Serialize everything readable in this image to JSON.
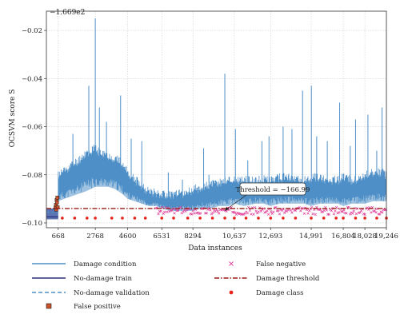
{
  "chart_data": {
    "type": "line",
    "offset_label": "−1.669e2",
    "ylabel": "OCSVM score S",
    "xlabel": "Data instances",
    "x_ticks": [
      "668",
      "2768",
      "4600",
      "6531",
      "8294",
      "10,637",
      "12,693",
      "14,991",
      "16,804",
      "18,028",
      "19,246"
    ],
    "x_tick_values": [
      668,
      2768,
      4600,
      6531,
      8294,
      10637,
      12693,
      14991,
      16804,
      18028,
      19246
    ],
    "y_ticks": [
      "−0.02",
      "−0.04",
      "−0.06",
      "−0.08",
      "−0.10"
    ],
    "y_tick_values": [
      -0.02,
      -0.04,
      -0.06,
      -0.08,
      -0.1
    ],
    "xlim": [
      0,
      19246
    ],
    "ylim": [
      -0.102,
      -0.012
    ],
    "grid": true,
    "threshold": {
      "value": -0.094,
      "annotation": "Threshold = −166.99"
    },
    "series": [
      {
        "name": "Damage condition",
        "color": "#4e8fc7",
        "style": "solid",
        "envelope": {
          "x": [
            668,
            1000,
            1400,
            1800,
            2200,
            2500,
            2768,
            3100,
            3500,
            3900,
            4300,
            4600,
            5000,
            5400,
            5800,
            6200,
            6531,
            7000,
            7500,
            8000,
            8294,
            8800,
            9300,
            9800,
            10300,
            10637,
            11200,
            11800,
            12300,
            12693,
            13200,
            13700,
            14200,
            14600,
            14991,
            15500,
            16000,
            16500,
            16804,
            17300,
            17700,
            18028,
            18500,
            19000,
            19246
          ],
          "low": [
            -0.091,
            -0.09,
            -0.089,
            -0.088,
            -0.087,
            -0.086,
            -0.085,
            -0.085,
            -0.085,
            -0.086,
            -0.088,
            -0.09,
            -0.091,
            -0.092,
            -0.093,
            -0.093,
            -0.094,
            -0.095,
            -0.095,
            -0.095,
            -0.095,
            -0.094,
            -0.094,
            -0.093,
            -0.093,
            -0.092,
            -0.093,
            -0.092,
            -0.092,
            -0.093,
            -0.092,
            -0.092,
            -0.092,
            -0.092,
            -0.093,
            -0.092,
            -0.092,
            -0.092,
            -0.093,
            -0.092,
            -0.092,
            -0.092,
            -0.091,
            -0.091,
            -0.091
          ],
          "high": [
            -0.081,
            -0.079,
            -0.077,
            -0.075,
            -0.072,
            -0.071,
            -0.07,
            -0.072,
            -0.073,
            -0.074,
            -0.076,
            -0.08,
            -0.083,
            -0.085,
            -0.088,
            -0.088,
            -0.089,
            -0.089,
            -0.089,
            -0.088,
            -0.087,
            -0.086,
            -0.085,
            -0.084,
            -0.083,
            -0.083,
            -0.083,
            -0.083,
            -0.083,
            -0.083,
            -0.082,
            -0.082,
            -0.083,
            -0.083,
            -0.082,
            -0.082,
            -0.083,
            -0.083,
            -0.082,
            -0.083,
            -0.082,
            -0.081,
            -0.08,
            -0.08,
            -0.081
          ]
        },
        "spikes": [
          {
            "x": 2400,
            "y": -0.043
          },
          {
            "x": 2768,
            "y": -0.015
          },
          {
            "x": 3000,
            "y": -0.052
          },
          {
            "x": 3400,
            "y": -0.058
          },
          {
            "x": 1500,
            "y": -0.063
          },
          {
            "x": 4200,
            "y": -0.047
          },
          {
            "x": 4800,
            "y": -0.065
          },
          {
            "x": 5400,
            "y": -0.066
          },
          {
            "x": 6900,
            "y": -0.079
          },
          {
            "x": 7700,
            "y": -0.082
          },
          {
            "x": 8900,
            "y": -0.069
          },
          {
            "x": 9200,
            "y": -0.08
          },
          {
            "x": 10100,
            "y": -0.038
          },
          {
            "x": 10700,
            "y": -0.061
          },
          {
            "x": 11400,
            "y": -0.074
          },
          {
            "x": 12200,
            "y": -0.066
          },
          {
            "x": 12600,
            "y": -0.064
          },
          {
            "x": 13400,
            "y": -0.06
          },
          {
            "x": 13900,
            "y": -0.061
          },
          {
            "x": 14500,
            "y": -0.045
          },
          {
            "x": 15000,
            "y": -0.043
          },
          {
            "x": 15300,
            "y": -0.064
          },
          {
            "x": 15900,
            "y": -0.066
          },
          {
            "x": 16600,
            "y": -0.05
          },
          {
            "x": 17200,
            "y": -0.068
          },
          {
            "x": 17500,
            "y": -0.057
          },
          {
            "x": 18200,
            "y": -0.055
          },
          {
            "x": 18700,
            "y": -0.07
          },
          {
            "x": 19000,
            "y": -0.052
          }
        ]
      },
      {
        "name": "No-damage train",
        "color": "#2b2f7a",
        "style": "solid",
        "x": [
          0,
          668
        ],
        "values": [
          -0.0975,
          -0.0975
        ]
      },
      {
        "name": "No-damage validation",
        "color": "#4e8fc7",
        "style": "dashed",
        "x": [
          0,
          668
        ],
        "values": [
          -0.0955,
          -0.0955
        ]
      },
      {
        "name": "False positive",
        "color": "#c8512a",
        "style": "square-marker",
        "x": [
          520,
          540,
          560,
          580,
          600,
          620,
          640
        ],
        "values": [
          -0.0935,
          -0.0925,
          -0.0945,
          -0.0905,
          -0.0915,
          -0.0895,
          -0.0935
        ]
      },
      {
        "name": "False negative",
        "color": "#e0409a",
        "style": "x-marker",
        "x_range": [
          6200,
          19246
        ],
        "band": [
          -0.0965,
          -0.0935
        ]
      },
      {
        "name": "Damage threshold",
        "color": "#9b1b14",
        "style": "dashdot",
        "x": [
          0,
          19246
        ],
        "values": [
          -0.094,
          -0.094
        ]
      },
      {
        "name": "Damage class",
        "color": "#e8241b",
        "style": "dot-marker",
        "x": [
          900,
          1600,
          2300,
          2768,
          3700,
          4300,
          5000,
          5600,
          6531,
          7200,
          8000,
          8700,
          9400,
          10100,
          10637,
          11300,
          12000,
          12693,
          13400,
          14100,
          14991,
          15700,
          16400,
          16804,
          17500,
          18028,
          18700,
          19246
        ],
        "values": [
          -0.098,
          -0.098,
          -0.098,
          -0.098,
          -0.098,
          -0.098,
          -0.098,
          -0.098,
          -0.098,
          -0.098,
          -0.098,
          -0.098,
          -0.098,
          -0.098,
          -0.098,
          -0.098,
          -0.098,
          -0.098,
          -0.098,
          -0.098,
          -0.098,
          -0.098,
          -0.098,
          -0.098,
          -0.098,
          -0.098,
          -0.098,
          -0.098
        ]
      }
    ],
    "legend": {
      "placement": "bottom",
      "entries": [
        {
          "label": "Damage condition",
          "key": "damage-condition"
        },
        {
          "label": "No-damage train",
          "key": "no-damage-train"
        },
        {
          "label": "No-damage validation",
          "key": "no-damage-validation"
        },
        {
          "label": "False positive",
          "key": "false-positive"
        },
        {
          "label": "False negative",
          "key": "false-negative"
        },
        {
          "label": "Damage threshold",
          "key": "damage-threshold"
        },
        {
          "label": "Damage class",
          "key": "damage-class"
        }
      ]
    }
  }
}
